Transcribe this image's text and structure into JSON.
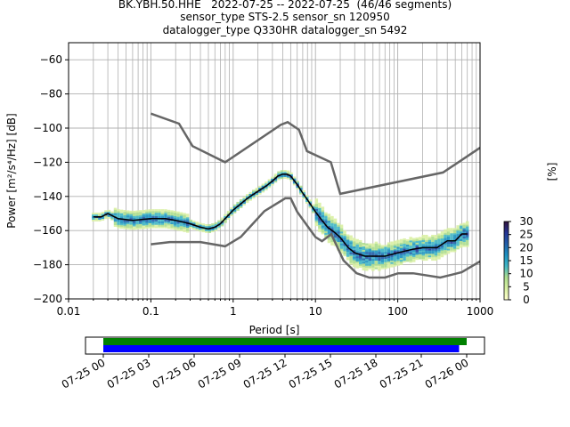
{
  "title": {
    "line1": "BK.YBH.50.HHE   2022-07-25 -- 2022-07-25  (46/46 segments)",
    "line2": "sensor_type STS-2.5 sensor_sn 120950",
    "line3": "datalogger_type Q330HR datalogger_sn 5492"
  },
  "chart_data": [
    {
      "type": "heatmap",
      "xlabel": "Period [s]",
      "ylabel": "Power [m²/s⁴/Hz] [dB]",
      "xscale": "log",
      "xlim": [
        0.01,
        1000
      ],
      "ylim": [
        -200,
        -50
      ],
      "xticks": [
        0.01,
        0.1,
        1,
        10,
        100,
        1000
      ],
      "xtick_labels": [
        "0.01",
        "0.1",
        "1",
        "10",
        "100",
        "1000"
      ],
      "yticks": [
        -200,
        -180,
        -160,
        -140,
        -120,
        -100,
        -80,
        -60
      ],
      "ytick_labels": [
        "−200",
        "−180",
        "−160",
        "−140",
        "−120",
        "−100",
        "−80",
        "−60"
      ],
      "grid": true,
      "mode_curve": [
        [
          0.02,
          -152
        ],
        [
          0.025,
          -152
        ],
        [
          0.03,
          -150
        ],
        [
          0.04,
          -153
        ],
        [
          0.06,
          -154
        ],
        [
          0.1,
          -153
        ],
        [
          0.15,
          -153
        ],
        [
          0.2,
          -154
        ],
        [
          0.3,
          -156
        ],
        [
          0.4,
          -158
        ],
        [
          0.5,
          -159
        ],
        [
          0.6,
          -158
        ],
        [
          0.7,
          -156
        ],
        [
          0.8,
          -153
        ],
        [
          1,
          -148
        ],
        [
          1.5,
          -141
        ],
        [
          2,
          -137
        ],
        [
          2.5,
          -134
        ],
        [
          3,
          -131
        ],
        [
          3.5,
          -128
        ],
        [
          4,
          -127
        ],
        [
          4.5,
          -127
        ],
        [
          5,
          -128
        ],
        [
          6,
          -133
        ],
        [
          7,
          -138
        ],
        [
          8,
          -142
        ],
        [
          10,
          -149
        ],
        [
          12,
          -154
        ],
        [
          14,
          -158
        ],
        [
          17,
          -161
        ],
        [
          20,
          -164
        ],
        [
          25,
          -170
        ],
        [
          30,
          -173
        ],
        [
          40,
          -175
        ],
        [
          50,
          -175
        ],
        [
          70,
          -175
        ],
        [
          100,
          -173
        ],
        [
          150,
          -171
        ],
        [
          200,
          -170
        ],
        [
          300,
          -170
        ],
        [
          400,
          -166
        ],
        [
          500,
          -166
        ],
        [
          600,
          -162
        ],
        [
          700,
          -162
        ]
      ],
      "noise_model_high": [
        [
          0.1,
          -91.5
        ],
        [
          0.22,
          -97.4
        ],
        [
          0.32,
          -110.5
        ],
        [
          0.8,
          -120
        ],
        [
          3.8,
          -98
        ],
        [
          4.6,
          -96.5
        ],
        [
          6.3,
          -101
        ],
        [
          7.9,
          -113.5
        ],
        [
          15.4,
          -120
        ],
        [
          20,
          -138.5
        ],
        [
          354.8,
          -126
        ],
        [
          1000,
          -111.5
        ]
      ],
      "noise_model_low": [
        [
          0.1,
          -168
        ],
        [
          0.17,
          -166.7
        ],
        [
          0.4,
          -166.7
        ],
        [
          0.8,
          -169.2
        ],
        [
          1.24,
          -163.7
        ],
        [
          2.4,
          -148.6
        ],
        [
          4.3,
          -141.1
        ],
        [
          5,
          -141.1
        ],
        [
          6,
          -149
        ],
        [
          10,
          -163.8
        ],
        [
          12,
          -166.2
        ],
        [
          15.6,
          -162.1
        ],
        [
          21.9,
          -177.5
        ],
        [
          31.6,
          -185
        ],
        [
          45,
          -187.5
        ],
        [
          70,
          -187.5
        ],
        [
          101,
          -185
        ],
        [
          154,
          -185
        ],
        [
          328,
          -187.5
        ],
        [
          600,
          -184.4
        ],
        [
          1000,
          -178
        ]
      ],
      "colorbar": {
        "label": "[%]",
        "min": 0,
        "max": 30,
        "ticks": [
          0,
          5,
          10,
          15,
          20,
          25,
          30
        ],
        "colormap": [
          "#ffffcc",
          "#d9f0a3",
          "#addd8e",
          "#41b6c4",
          "#1d91c0",
          "#225ea8",
          "#253494",
          "#30123b"
        ]
      }
    },
    {
      "type": "timeline",
      "xlim": [
        "2022-07-25 00:00",
        "2022-07-26 03:00"
      ],
      "xtick_labels": [
        "07-25 00",
        "07-25 03",
        "07-25 06",
        "07-25 09",
        "07-25 12",
        "07-25 15",
        "07-25 18",
        "07-25 21",
        "07-26 00"
      ],
      "bars": [
        {
          "color": "#008000",
          "start": "2022-07-25 00:00",
          "end": "2022-07-26 00:00"
        },
        {
          "color": "#0000ff",
          "start": "2022-07-25 00:00",
          "end": "2022-07-25 23:30"
        }
      ]
    }
  ]
}
